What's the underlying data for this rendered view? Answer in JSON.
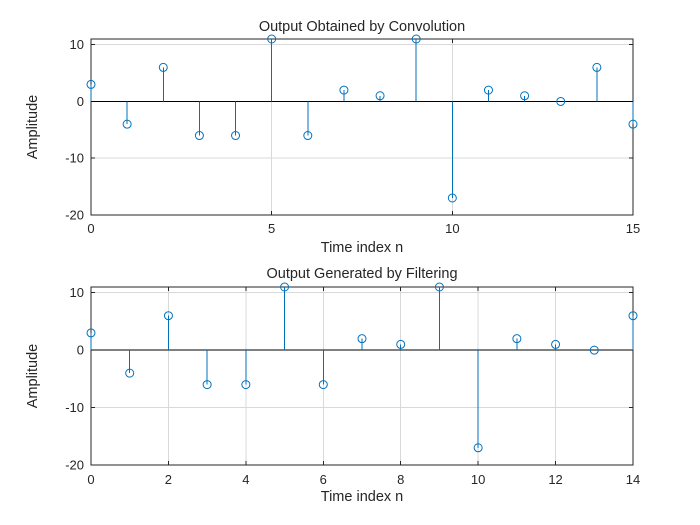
{
  "window": {
    "background": "#ffffff"
  },
  "colors": {
    "stem": "#0072BD",
    "axis": "#262626",
    "grid": "#d9d9d9",
    "baseline": "#000000",
    "text": "#262626"
  },
  "chart_data": [
    {
      "type": "stem",
      "title": "Output Obtained by Convolution",
      "xlabel": "Time index n",
      "ylabel": "Amplitude",
      "x": [
        0,
        1,
        2,
        3,
        4,
        5,
        6,
        7,
        8,
        9,
        10,
        11,
        12,
        13,
        14,
        15
      ],
      "values": [
        3,
        -4,
        6,
        -6,
        -6,
        11,
        -6,
        2,
        1,
        11,
        -17,
        2,
        1,
        0,
        6,
        -4
      ],
      "xlim": [
        0,
        15
      ],
      "ylim": [
        -20,
        11
      ],
      "xticks": [
        0,
        5,
        10,
        15
      ],
      "yticks": [
        10,
        0,
        -10,
        -20
      ],
      "grid": true,
      "marker": "circle",
      "stem_color": "#0072BD"
    },
    {
      "type": "stem",
      "title": "Output Generated by Filtering",
      "xlabel": "Time index n",
      "ylabel": "Amplitude",
      "x": [
        0,
        1,
        2,
        3,
        4,
        5,
        6,
        7,
        8,
        9,
        10,
        11,
        12,
        13,
        14
      ],
      "values": [
        3,
        -4,
        6,
        -6,
        -6,
        11,
        -6,
        2,
        1,
        11,
        -17,
        2,
        1,
        0,
        6
      ],
      "xlim": [
        0,
        14
      ],
      "ylim": [
        -20,
        11
      ],
      "xticks": [
        0,
        2,
        4,
        6,
        8,
        10,
        12,
        14
      ],
      "yticks": [
        10,
        0,
        -10,
        -20
      ],
      "grid": true,
      "marker": "circle",
      "stem_color": "#0072BD"
    }
  ]
}
